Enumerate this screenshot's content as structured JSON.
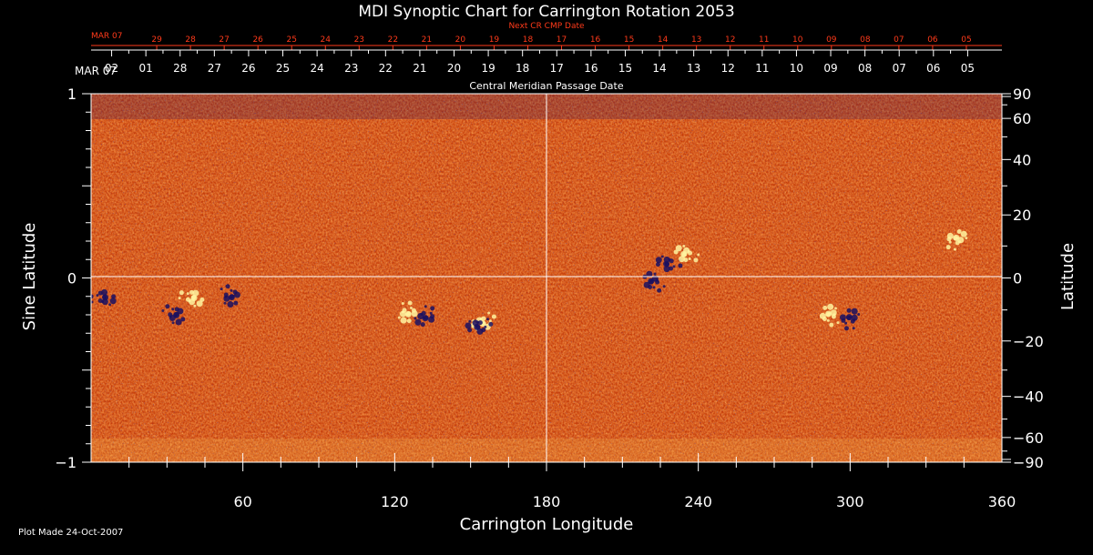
{
  "chart_data": {
    "type": "heatmap",
    "title": "MDI Synoptic Chart for Carrington Rotation 2053",
    "xlabel": "Carrington Longitude",
    "ylabel_left": "Sine Latitude",
    "ylabel_right": "Latitude",
    "xlim": [
      0,
      360
    ],
    "ylim_sine": [
      -1,
      1
    ],
    "x_ticks": [
      60,
      120,
      180,
      240,
      300,
      360
    ],
    "y_left_ticks": [
      "1",
      "0",
      "−1"
    ],
    "y_right_ticks": [
      {
        "deg": 90,
        "label": "90"
      },
      {
        "deg": 60,
        "label": "60"
      },
      {
        "deg": 40,
        "label": "40"
      },
      {
        "deg": 20,
        "label": "20"
      },
      {
        "deg": 0,
        "label": "0"
      },
      {
        "deg": -20,
        "label": "−20"
      },
      {
        "deg": -40,
        "label": "−40"
      },
      {
        "deg": -60,
        "label": "−60"
      },
      {
        "deg": -90,
        "label": "−90"
      }
    ],
    "cmp_axis_label": "Central Meridian Passage Date",
    "cmp_month_label": "MAR 07",
    "cmp_dates": [
      "02",
      "01",
      "28",
      "27",
      "26",
      "25",
      "24",
      "23",
      "22",
      "21",
      "20",
      "19",
      "18",
      "17",
      "16",
      "15",
      "14",
      "13",
      "12",
      "11",
      "10",
      "09",
      "08",
      "07",
      "06",
      "05"
    ],
    "next_cr_label": "Next CR CMP Date",
    "next_cr_month_label": "MAR 07",
    "next_cr_dates": [
      "29",
      "28",
      "27",
      "26",
      "25",
      "24",
      "23",
      "22",
      "21",
      "20",
      "19",
      "18",
      "17",
      "16",
      "15",
      "14",
      "13",
      "12",
      "11",
      "10",
      "09",
      "08",
      "07",
      "06",
      "05"
    ],
    "colors": {
      "background": "#000000",
      "field_base": "#e84a10",
      "positive": "#fff3a0",
      "negative": "#1a1060",
      "next_cr": "#ff3a1a"
    },
    "active_regions": [
      {
        "lon": 5,
        "sinlat": -0.11,
        "polarity": "negative"
      },
      {
        "lon": 40,
        "sinlat": -0.11,
        "polarity": "positive"
      },
      {
        "lon": 33,
        "sinlat": -0.2,
        "polarity": "negative"
      },
      {
        "lon": 55,
        "sinlat": -0.1,
        "polarity": "negative"
      },
      {
        "lon": 125,
        "sinlat": -0.19,
        "polarity": "positive"
      },
      {
        "lon": 132,
        "sinlat": -0.21,
        "polarity": "negative"
      },
      {
        "lon": 155,
        "sinlat": -0.24,
        "polarity": "positive"
      },
      {
        "lon": 153,
        "sinlat": -0.26,
        "polarity": "negative"
      },
      {
        "lon": 228,
        "sinlat": 0.08,
        "polarity": "negative"
      },
      {
        "lon": 235,
        "sinlat": 0.13,
        "polarity": "positive"
      },
      {
        "lon": 222,
        "sinlat": -0.02,
        "polarity": "negative"
      },
      {
        "lon": 292,
        "sinlat": -0.2,
        "polarity": "positive"
      },
      {
        "lon": 300,
        "sinlat": -0.22,
        "polarity": "negative"
      },
      {
        "lon": 342,
        "sinlat": 0.21,
        "polarity": "positive"
      }
    ]
  },
  "footer": {
    "plot_made": "Plot Made 24-Oct-2007"
  }
}
